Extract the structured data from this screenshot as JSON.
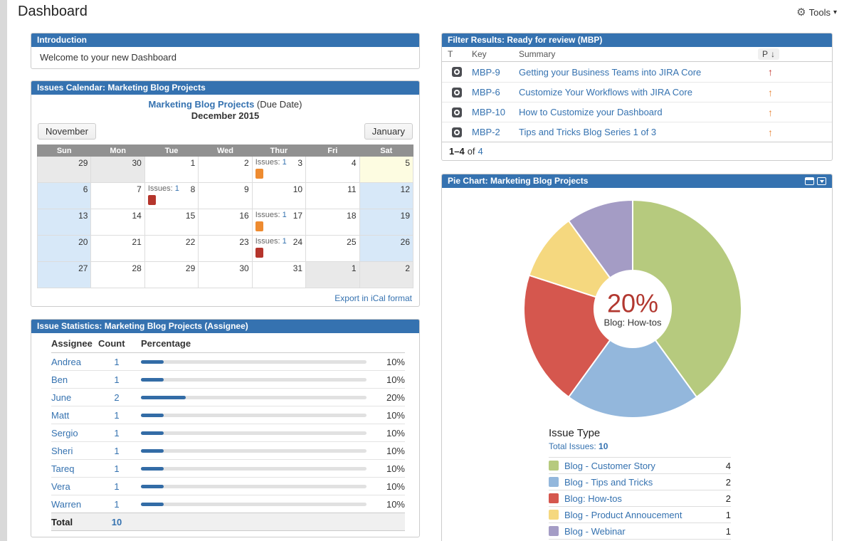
{
  "page": {
    "title": "Dashboard"
  },
  "toolbar": {
    "tools_label": "Tools"
  },
  "intro_panel": {
    "title": "Introduction",
    "body": "Welcome to your new Dashboard"
  },
  "calendar_panel": {
    "title": "Issues Calendar: Marketing Blog Projects",
    "project_link": "Marketing Blog Projects",
    "due_date_suffix": " (Due Date)",
    "month_label": "December 2015",
    "prev_button": "November",
    "next_button": "January",
    "day_headers": [
      "Sun",
      "Mon",
      "Tue",
      "Wed",
      "Thur",
      "Fri",
      "Sat"
    ],
    "issues_label": "Issues:",
    "marker_colors": {
      "orange": "#ee8b30",
      "red": "#b5352c"
    },
    "weeks": [
      [
        {
          "day": "29",
          "type": "prev"
        },
        {
          "day": "30",
          "type": "prev"
        },
        {
          "day": "1"
        },
        {
          "day": "2"
        },
        {
          "day": "3",
          "issues": "1",
          "marker": "orange"
        },
        {
          "day": "4"
        },
        {
          "day": "5",
          "type": "today"
        }
      ],
      [
        {
          "day": "6",
          "type": "weekend"
        },
        {
          "day": "7"
        },
        {
          "day": "8",
          "issues": "1",
          "marker": "red"
        },
        {
          "day": "9"
        },
        {
          "day": "10"
        },
        {
          "day": "11"
        },
        {
          "day": "12",
          "type": "weekend"
        }
      ],
      [
        {
          "day": "13",
          "type": "weekend"
        },
        {
          "day": "14"
        },
        {
          "day": "15"
        },
        {
          "day": "16"
        },
        {
          "day": "17",
          "issues": "1",
          "marker": "orange"
        },
        {
          "day": "18"
        },
        {
          "day": "19",
          "type": "weekend"
        }
      ],
      [
        {
          "day": "20",
          "type": "weekend"
        },
        {
          "day": "21"
        },
        {
          "day": "22"
        },
        {
          "day": "23"
        },
        {
          "day": "24",
          "issues": "1",
          "marker": "red"
        },
        {
          "day": "25"
        },
        {
          "day": "26",
          "type": "weekend"
        }
      ],
      [
        {
          "day": "27",
          "type": "weekend"
        },
        {
          "day": "28"
        },
        {
          "day": "29"
        },
        {
          "day": "30"
        },
        {
          "day": "31"
        },
        {
          "day": "1",
          "type": "next"
        },
        {
          "day": "2",
          "type": "next"
        }
      ]
    ],
    "export_link": "Export in iCal format"
  },
  "stats_panel": {
    "title": "Issue Statistics: Marketing Blog Projects (Assignee)",
    "columns": [
      "Assignee",
      "Count",
      "Percentage"
    ],
    "bar_color": "#336ca6",
    "rows": [
      {
        "name": "Andrea",
        "count": "1",
        "pct": "10%"
      },
      {
        "name": "Ben",
        "count": "1",
        "pct": "10%"
      },
      {
        "name": "June",
        "count": "2",
        "pct": "20%"
      },
      {
        "name": "Matt",
        "count": "1",
        "pct": "10%"
      },
      {
        "name": "Sergio",
        "count": "1",
        "pct": "10%"
      },
      {
        "name": "Sheri",
        "count": "1",
        "pct": "10%"
      },
      {
        "name": "Tareq",
        "count": "1",
        "pct": "10%"
      },
      {
        "name": "Vera",
        "count": "1",
        "pct": "10%"
      },
      {
        "name": "Warren",
        "count": "1",
        "pct": "10%"
      }
    ],
    "total_label": "Total",
    "total_count": "10"
  },
  "filter_panel": {
    "title": "Filter Results: Ready for review (MBP)",
    "columns": {
      "type": "T",
      "key": "Key",
      "summary": "Summary",
      "priority": "P"
    },
    "sort_icon": "↓",
    "rows": [
      {
        "key": "MBP-9",
        "summary": "Getting your Business Teams into JIRA Core",
        "priority_color": "#c3362f"
      },
      {
        "key": "MBP-6",
        "summary": "Customize Your Workflows with JIRA Core",
        "priority_color": "#e8863a"
      },
      {
        "key": "MBP-10",
        "summary": "How to Customize your Dashboard",
        "priority_color": "#e8863a"
      },
      {
        "key": "MBP-2",
        "summary": "Tips and Tricks Blog Series 1 of 3",
        "priority_color": "#e8863a"
      }
    ],
    "pagination": {
      "range": "1–4",
      "of_label": "of",
      "total": "4"
    }
  },
  "pie_panel": {
    "title": "Pie Chart: Marketing Blog Projects",
    "center_value": "20%",
    "center_label": "Blog: How-tos",
    "legend_title": "Issue Type",
    "total_label": "Total Issues:",
    "total_value": "10"
  },
  "chart_data": [
    {
      "type": "pie",
      "title": "Pie Chart: Marketing Blog Projects",
      "donut": true,
      "start_angle_deg": 0,
      "direction": "clockwise",
      "center_annotation": {
        "value": "20%",
        "label": "Blog: How-tos"
      },
      "legend_title": "Issue Type",
      "total": 10,
      "slices": [
        {
          "label": "Blog - Customer Story",
          "value": 4,
          "color": "#b6ca7e"
        },
        {
          "label": "Blog - Tips and Tricks",
          "value": 2,
          "color": "#93b7dc"
        },
        {
          "label": "Blog: How-tos",
          "value": 2,
          "color": "#d5574e"
        },
        {
          "label": "Blog - Product Annoucement",
          "value": 1,
          "color": "#f5d87f"
        },
        {
          "label": "Blog - Webinar",
          "value": 1,
          "color": "#a49cc5"
        }
      ]
    },
    {
      "type": "bar",
      "title": "Issue Statistics: Marketing Blog Projects (Assignee)",
      "categories": [
        "Andrea",
        "Ben",
        "June",
        "Matt",
        "Sergio",
        "Sheri",
        "Tareq",
        "Vera",
        "Warren"
      ],
      "values": [
        1,
        1,
        2,
        1,
        1,
        1,
        1,
        1,
        1
      ],
      "percentages": [
        10,
        10,
        20,
        10,
        10,
        10,
        10,
        10,
        10
      ],
      "total": 10,
      "xlabel": "Assignee",
      "ylabel": "Count"
    }
  ]
}
